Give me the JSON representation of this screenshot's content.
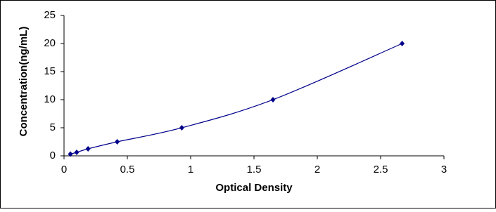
{
  "chart_data": {
    "type": "scatter",
    "x_label": "Optical Density",
    "y_label": "Concentration(ng/mL)",
    "x": [
      0.05,
      0.1,
      0.19,
      0.42,
      0.93,
      1.65,
      2.67
    ],
    "series": [
      {
        "color": "#00008b",
        "values": [
          0.312,
          0.625,
          1.25,
          2.5,
          5,
          10,
          20
        ]
      }
    ],
    "xlim": [
      0,
      3
    ],
    "xticks": [
      0,
      0.5,
      1,
      1.5,
      2,
      2.5,
      3
    ],
    "ylim": [
      0,
      25
    ],
    "yticks": [
      0,
      5,
      10,
      15,
      20,
      25
    ],
    "grid": false
  }
}
